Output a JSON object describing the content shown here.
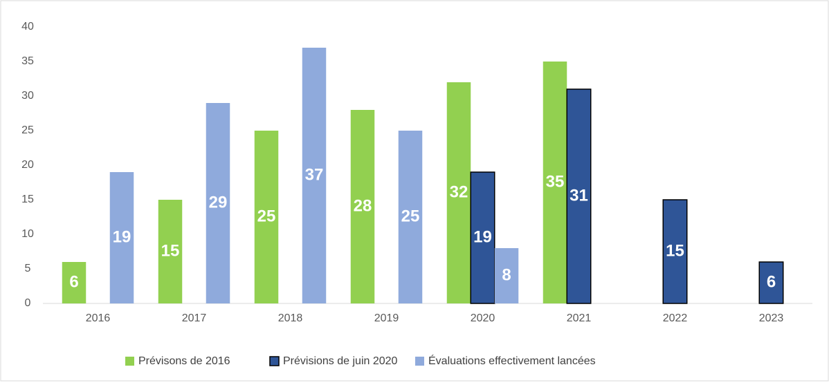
{
  "chart_data": {
    "type": "bar",
    "categories": [
      "2016",
      "2017",
      "2018",
      "2019",
      "2020",
      "2021",
      "2022",
      "2023"
    ],
    "series": [
      {
        "name": "Prévisons de 2016",
        "color": "#92d050",
        "values": [
          6,
          15,
          25,
          28,
          32,
          35,
          null,
          null
        ]
      },
      {
        "name": "Prévisions de juin 2020",
        "color": "#2f5597",
        "values": [
          null,
          null,
          null,
          null,
          19,
          31,
          15,
          6
        ]
      },
      {
        "name": "Évaluations effectivement lancées",
        "color": "#8faadc",
        "values": [
          19,
          29,
          37,
          25,
          8,
          null,
          null,
          null
        ]
      }
    ],
    "ylim": [
      0,
      40
    ],
    "yticks": [
      0,
      5,
      10,
      15,
      20,
      25,
      30,
      35,
      40
    ],
    "grid": false,
    "legend": "bottom"
  }
}
